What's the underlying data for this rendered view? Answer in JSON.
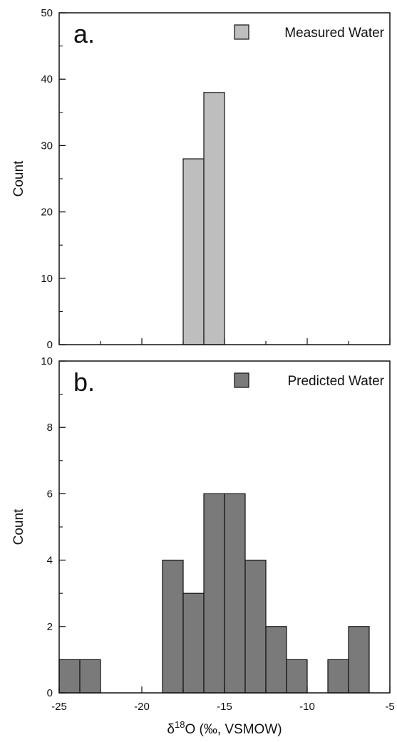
{
  "chart_data": [
    {
      "type": "bar",
      "panel_label": "a.",
      "ylabel": "Count",
      "xlim": [
        -25,
        -5
      ],
      "ylim": [
        0,
        50
      ],
      "yticks": [
        0,
        10,
        20,
        30,
        40,
        50
      ],
      "bin_width": 1.25,
      "series": [
        {
          "name": "Measured Water",
          "color": "#bebebe",
          "bins": [
            {
              "x0": -17.5,
              "x1": -16.25,
              "count": 28
            },
            {
              "x0": -16.25,
              "x1": -15.0,
              "count": 38
            }
          ]
        }
      ],
      "legend_position": "top-right"
    },
    {
      "type": "bar",
      "panel_label": "b.",
      "ylabel": "Count",
      "xlabel": "δ18O (‰, VSMOW)",
      "xlabel_parts": {
        "pre": "δ",
        "sup": "18",
        "post": "O (‰, VSMOW)"
      },
      "xlim": [
        -25,
        -5
      ],
      "ylim": [
        0,
        10
      ],
      "yticks": [
        0,
        2,
        4,
        6,
        8,
        10
      ],
      "xticks": [
        -25,
        -20,
        -15,
        -10,
        -5
      ],
      "series": [
        {
          "name": "Predicted Water",
          "color": "#7a7a7a",
          "bins": [
            {
              "x0": -25.0,
              "x1": -23.75,
              "count": 1
            },
            {
              "x0": -23.75,
              "x1": -22.5,
              "count": 1
            },
            {
              "x0": -18.75,
              "x1": -17.5,
              "count": 4
            },
            {
              "x0": -17.5,
              "x1": -16.25,
              "count": 3
            },
            {
              "x0": -16.25,
              "x1": -15.0,
              "count": 6
            },
            {
              "x0": -15.0,
              "x1": -13.75,
              "count": 6
            },
            {
              "x0": -13.75,
              "x1": -12.5,
              "count": 4
            },
            {
              "x0": -12.5,
              "x1": -11.25,
              "count": 2
            },
            {
              "x0": -11.25,
              "x1": -10.0,
              "count": 1
            },
            {
              "x0": -8.75,
              "x1": -7.5,
              "count": 1
            },
            {
              "x0": -7.5,
              "x1": -6.25,
              "count": 2
            }
          ]
        }
      ],
      "legend_position": "top-right"
    }
  ]
}
